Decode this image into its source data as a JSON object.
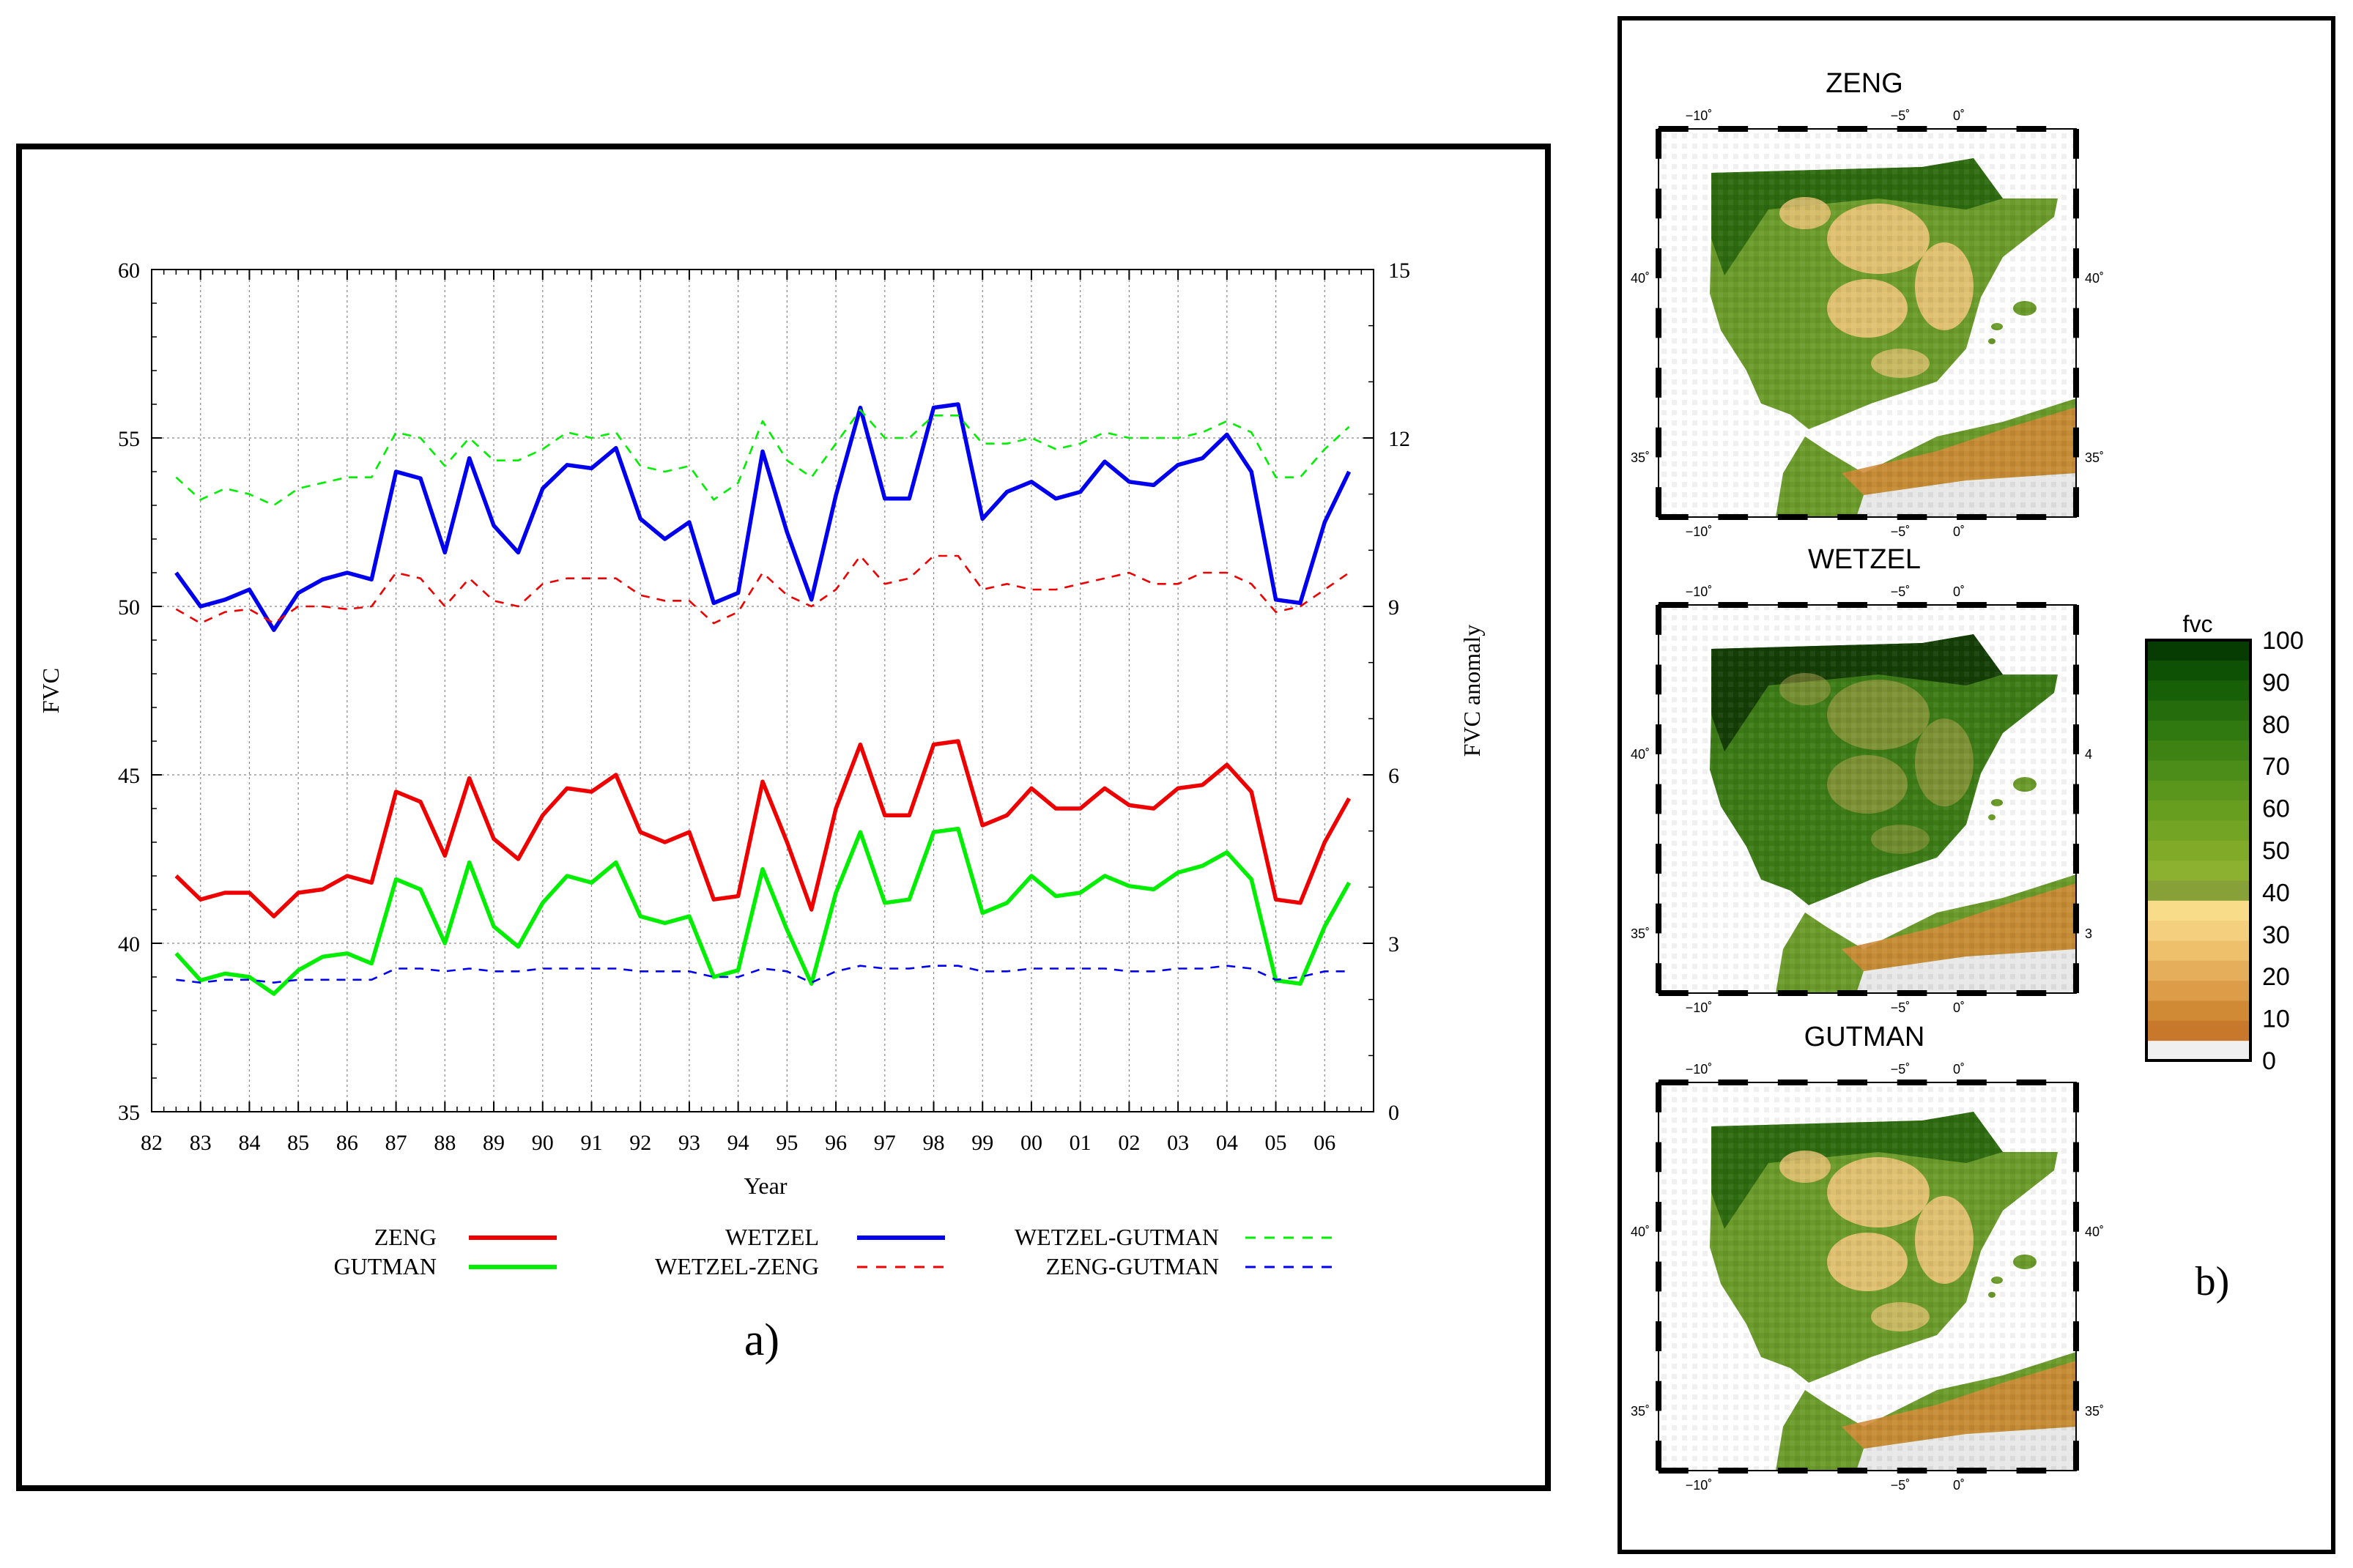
{
  "chart_data": {
    "type": "line",
    "panel_label": "a)",
    "xlabel": "Year",
    "ylabel": "FVC",
    "y2label": "FVC anomaly",
    "ylim": [
      35,
      60
    ],
    "y2lim": [
      0,
      15
    ],
    "xlim": [
      82,
      107
    ],
    "grid": true,
    "xticks": [
      "82",
      "83",
      "84",
      "85",
      "86",
      "87",
      "88",
      "89",
      "90",
      "91",
      "92",
      "93",
      "94",
      "95",
      "96",
      "97",
      "98",
      "99",
      "00",
      "01",
      "02",
      "03",
      "04",
      "05",
      "06"
    ],
    "yticks": [
      "35",
      "40",
      "45",
      "50",
      "55",
      "60"
    ],
    "y2ticks": [
      "0",
      "3",
      "6",
      "9",
      "12",
      "15"
    ],
    "x": [
      82.5,
      83,
      83.5,
      84,
      84.5,
      85,
      85.5,
      86,
      86.5,
      87,
      87.5,
      88,
      88.5,
      89,
      89.5,
      90,
      90.5,
      91,
      91.5,
      92,
      92.5,
      93,
      93.5,
      94,
      94.5,
      95,
      95.5,
      96,
      96.5,
      97,
      97.5,
      98,
      98.5,
      99,
      99.5,
      100,
      100.5,
      101,
      101.5,
      102,
      102.5,
      103,
      103.5,
      104,
      104.5,
      105,
      105.5,
      106,
      106.5
    ],
    "series": [
      {
        "name": "WETZEL",
        "axis": "left",
        "style": "solid",
        "color": "#0000ee",
        "values": [
          51.0,
          50.0,
          50.2,
          50.5,
          49.3,
          50.4,
          50.8,
          51.0,
          50.8,
          54.0,
          53.8,
          51.6,
          54.4,
          52.4,
          51.6,
          53.5,
          54.2,
          54.1,
          54.7,
          52.6,
          52.0,
          52.5,
          50.1,
          50.4,
          54.6,
          52.2,
          50.2,
          53.3,
          55.9,
          53.2,
          53.2,
          55.9,
          56.0,
          52.6,
          53.4,
          53.7,
          53.2,
          53.4,
          54.3,
          53.7,
          53.6,
          54.2,
          54.4,
          55.1,
          54.0,
          50.2,
          50.1,
          52.5,
          54.0
        ]
      },
      {
        "name": "ZENG",
        "axis": "left",
        "style": "solid",
        "color": "#ee0000",
        "values": [
          42.0,
          41.3,
          41.5,
          41.5,
          40.8,
          41.5,
          41.6,
          42.0,
          41.8,
          44.5,
          44.2,
          42.6,
          44.9,
          43.1,
          42.5,
          43.8,
          44.6,
          44.5,
          45.0,
          43.3,
          43.0,
          43.3,
          41.3,
          41.4,
          44.8,
          43.0,
          41.0,
          44.0,
          45.9,
          43.8,
          43.8,
          45.9,
          46.0,
          43.5,
          43.8,
          44.6,
          44.0,
          44.0,
          44.6,
          44.1,
          44.0,
          44.6,
          44.7,
          45.3,
          44.5,
          41.3,
          41.2,
          43.0,
          44.3
        ]
      },
      {
        "name": "GUTMAN",
        "axis": "left",
        "style": "solid",
        "color": "#00ee00",
        "values": [
          39.7,
          38.9,
          39.1,
          39.0,
          38.5,
          39.2,
          39.6,
          39.7,
          39.4,
          41.9,
          41.6,
          40.0,
          42.4,
          40.5,
          39.9,
          41.2,
          42.0,
          41.8,
          42.4,
          40.8,
          40.6,
          40.8,
          39.0,
          39.2,
          42.2,
          40.4,
          38.8,
          41.5,
          43.3,
          41.2,
          41.3,
          43.3,
          43.4,
          40.9,
          41.2,
          42.0,
          41.4,
          41.5,
          42.0,
          41.7,
          41.6,
          42.1,
          42.3,
          42.7,
          41.9,
          38.9,
          38.8,
          40.5,
          41.8
        ]
      },
      {
        "name": "WETZEL-ZENG",
        "axis": "right",
        "style": "dashed",
        "color": "#ee0000",
        "values": [
          8.95,
          8.7,
          8.9,
          8.95,
          8.7,
          9.0,
          9.0,
          8.95,
          9.0,
          9.6,
          9.5,
          9.0,
          9.5,
          9.1,
          9.0,
          9.4,
          9.5,
          9.5,
          9.5,
          9.2,
          9.1,
          9.1,
          8.7,
          8.9,
          9.6,
          9.2,
          9.0,
          9.3,
          9.9,
          9.4,
          9.5,
          9.9,
          9.9,
          9.3,
          9.4,
          9.3,
          9.3,
          9.4,
          9.5,
          9.6,
          9.4,
          9.4,
          9.6,
          9.6,
          9.4,
          8.9,
          9.0,
          9.3,
          9.6
        ]
      },
      {
        "name": "WETZEL-GUTMAN",
        "axis": "right",
        "style": "dashed",
        "color": "#00ee00",
        "values": [
          11.3,
          10.9,
          11.1,
          11.0,
          10.8,
          11.1,
          11.2,
          11.3,
          11.3,
          12.1,
          12.0,
          11.5,
          12.0,
          11.6,
          11.6,
          11.8,
          12.1,
          12.0,
          12.1,
          11.5,
          11.4,
          11.5,
          10.9,
          11.2,
          12.3,
          11.6,
          11.3,
          11.9,
          12.5,
          12.0,
          12.0,
          12.4,
          12.4,
          11.9,
          11.9,
          12.0,
          11.8,
          11.9,
          12.1,
          12.0,
          12.0,
          12.0,
          12.1,
          12.3,
          12.1,
          11.3,
          11.3,
          11.8,
          12.2
        ]
      },
      {
        "name": "ZENG-GUTMAN",
        "axis": "right",
        "style": "dashed",
        "color": "#0000ee",
        "values": [
          2.35,
          2.3,
          2.35,
          2.35,
          2.3,
          2.35,
          2.35,
          2.35,
          2.35,
          2.55,
          2.55,
          2.5,
          2.55,
          2.5,
          2.5,
          2.55,
          2.55,
          2.55,
          2.55,
          2.5,
          2.5,
          2.5,
          2.4,
          2.4,
          2.55,
          2.5,
          2.3,
          2.5,
          2.6,
          2.55,
          2.55,
          2.6,
          2.6,
          2.5,
          2.5,
          2.55,
          2.55,
          2.55,
          2.55,
          2.5,
          2.5,
          2.55,
          2.55,
          2.6,
          2.55,
          2.35,
          2.4,
          2.5,
          2.5
        ]
      }
    ]
  },
  "legend": {
    "zeng": "ZENG",
    "gutman": "GUTMAN",
    "wetzel": "WETZEL",
    "wetzel_zeng": "WETZEL-ZENG",
    "wetzel_gutman": "WETZEL-GUTMAN",
    "zeng_gutman": "ZENG-GUTMAN"
  },
  "maps": {
    "panel_label": "b)",
    "titles": [
      "ZENG",
      "WETZEL",
      "GUTMAN"
    ],
    "lon_labels": [
      "−10˚",
      "−5˚",
      "0˚"
    ],
    "lat_labels_left": [
      "40˚",
      "35˚"
    ],
    "lat_labels_right_zeng": [
      "40˚",
      "35˚"
    ],
    "lat_labels_right_wetzel": [
      "4",
      "3"
    ],
    "lat_labels_right_gutman": [
      "40˚",
      "35˚"
    ],
    "colorbar": {
      "title": "fvc",
      "ticks": [
        "100",
        "90",
        "80",
        "70",
        "60",
        "50",
        "40",
        "30",
        "20",
        "10",
        "0"
      ],
      "colors": [
        "#f0f0f0",
        "#c8782a",
        "#d08a36",
        "#dc9c48",
        "#e4ae5a",
        "#eec06c",
        "#f4d07e",
        "#f8dc8a",
        "#88a038",
        "#8cb030",
        "#80aa28",
        "#74a424",
        "#689e20",
        "#5a961c",
        "#4c8c18",
        "#3e8214",
        "#307810",
        "#246c0c",
        "#186008",
        "#0e5004",
        "#063c02"
      ],
      "colorbar_legend": "fvc"
    },
    "colors": {
      "land": "#6a9a2a",
      "dense": "#2e6a10",
      "bare": "#ecc478",
      "desert": "#d08a36",
      "sea": "#ffffff",
      "nodata": "#e8e8e8"
    }
  }
}
